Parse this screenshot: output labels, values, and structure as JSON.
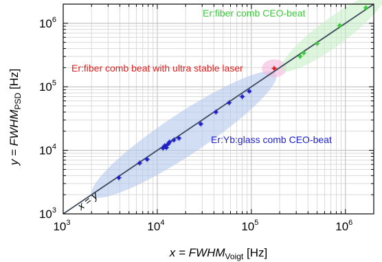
{
  "chart_data": {
    "type": "scatter",
    "title": "",
    "x_scale": "log",
    "y_scale": "log",
    "xlim": [
      1000,
      2000000
    ],
    "ylim": [
      1000,
      2000000
    ],
    "grid": true,
    "xlabel": {
      "prefix": "x = ",
      "main": "FWHM",
      "sub": "Voigt",
      "unit": " [Hz]"
    },
    "ylabel": {
      "prefix": "y = ",
      "main": "FWHM",
      "sub": "PSD",
      "unit": " [Hz]"
    },
    "x_ticks": [
      {
        "value": 1000,
        "base": "10",
        "exp": "3"
      },
      {
        "value": 10000,
        "base": "10",
        "exp": "4"
      },
      {
        "value": 100000,
        "base": "10",
        "exp": "5"
      },
      {
        "value": 1000000,
        "base": "10",
        "exp": "6"
      }
    ],
    "y_ticks": [
      {
        "value": 1000,
        "base": "10",
        "exp": "3"
      },
      {
        "value": 10000,
        "base": "10",
        "exp": "4"
      },
      {
        "value": 100000,
        "base": "10",
        "exp": "5"
      },
      {
        "value": 1000000,
        "base": "10",
        "exp": "6"
      }
    ],
    "reference_line": {
      "label": "x = y",
      "color": "#3b4a5a"
    },
    "series": [
      {
        "name": "Er:Yb:glass comb CEO-beat",
        "color": "#1f1fc8",
        "ellipse_color": "#b4c8ec",
        "points": [
          {
            "x": 3900,
            "y": 3700
          },
          {
            "x": 6500,
            "y": 6300
          },
          {
            "x": 7800,
            "y": 7200
          },
          {
            "x": 11500,
            "y": 10800
          },
          {
            "x": 12000,
            "y": 11800
          },
          {
            "x": 12500,
            "y": 11000
          },
          {
            "x": 13000,
            "y": 12500
          },
          {
            "x": 13500,
            "y": 13500
          },
          {
            "x": 15000,
            "y": 14500
          },
          {
            "x": 17000,
            "y": 15500
          },
          {
            "x": 29000,
            "y": 26000
          },
          {
            "x": 42000,
            "y": 40000
          },
          {
            "x": 58000,
            "y": 56000
          },
          {
            "x": 80000,
            "y": 70000
          },
          {
            "x": 95000,
            "y": 85000
          }
        ]
      },
      {
        "name": "Er:fiber comb beat with ultra stable laser",
        "color": "#e02020",
        "ellipse_color": "#f4b8dc",
        "points": [
          {
            "x": 175000,
            "y": 195000
          }
        ]
      },
      {
        "name": "Er:fiber comb CEO-beat",
        "color": "#3cc83c",
        "ellipse_color": "#c8f0c8",
        "points": [
          {
            "x": 330000,
            "y": 300000
          },
          {
            "x": 360000,
            "y": 340000
          },
          {
            "x": 500000,
            "y": 480000
          },
          {
            "x": 870000,
            "y": 920000
          },
          {
            "x": 1650000,
            "y": 1750000
          }
        ]
      }
    ]
  }
}
